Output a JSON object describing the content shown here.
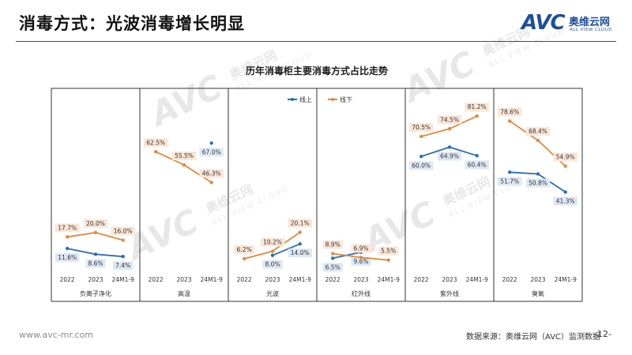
{
  "header": {
    "title": "消毒方式：光波消毒增长明显",
    "logo_mark": "AVC",
    "logo_cn": "奥维云网",
    "logo_en": "ALL VIEW CLOUD"
  },
  "footer": {
    "url": "www.avc-mr.com",
    "source": "数据来源：奥维云网（AVC）监测数据",
    "page": "-12-"
  },
  "watermark": {
    "text": "AVC",
    "sub": "ALL VIEW CLOUD",
    "cn": "奥维云网"
  },
  "chart_data": {
    "type": "line",
    "title": "历年消毒柜主要消毒方式占比走势",
    "x_ticks": [
      "2022",
      "2023",
      "24M1-9"
    ],
    "legend_position": "top-center",
    "series": [
      {
        "name": "线上",
        "color": "#2a6db5"
      },
      {
        "name": "线下",
        "color": "#e08a3c"
      }
    ],
    "panels": [
      {
        "label": "负离子净化",
        "lines": [
          [
            11.6,
            8.6,
            7.4
          ],
          [
            17.7,
            20.0,
            16.0
          ]
        ]
      },
      {
        "label": "高温",
        "lines": [
          [
            null,
            null,
            67.0
          ],
          [
            62.5,
            55.5,
            46.3
          ]
        ]
      },
      {
        "label": "光波",
        "lines": [
          [
            null,
            8.0,
            14.0
          ],
          [
            6.2,
            10.2,
            20.1
          ]
        ]
      },
      {
        "label": "红外线",
        "lines": [
          [
            6.5,
            9.6,
            null
          ],
          [
            8.9,
            6.9,
            5.5
          ]
        ]
      },
      {
        "label": "紫外线",
        "lines": [
          [
            60.0,
            64.9,
            60.4
          ],
          [
            70.5,
            74.5,
            81.2
          ]
        ]
      },
      {
        "label": "臭氧",
        "lines": [
          [
            51.7,
            50.8,
            41.3
          ],
          [
            78.6,
            68.4,
            54.9
          ]
        ]
      }
    ],
    "data_labels": [
      [
        "11.6%",
        "8.6%",
        "7.4%",
        "17.7%",
        "20.0%",
        "16.0%"
      ],
      [
        "",
        "",
        "67.0%",
        "62.5%",
        "55.5%",
        "46.3%"
      ],
      [
        "",
        "8.0%",
        "14.0%",
        "6.2%",
        "10.2%",
        "20.1%"
      ],
      [
        "6.5%",
        "9.6%",
        "",
        "8.9%",
        "6.9%",
        "5.5%"
      ],
      [
        "60.0%",
        "64.9%",
        "60.4%",
        "70.5%",
        "74.5%",
        "81.2%"
      ],
      [
        "51.7%",
        "50.8%",
        "41.3%",
        "78.6%",
        "68.4%",
        "54.9%"
      ]
    ],
    "grid": false
  }
}
